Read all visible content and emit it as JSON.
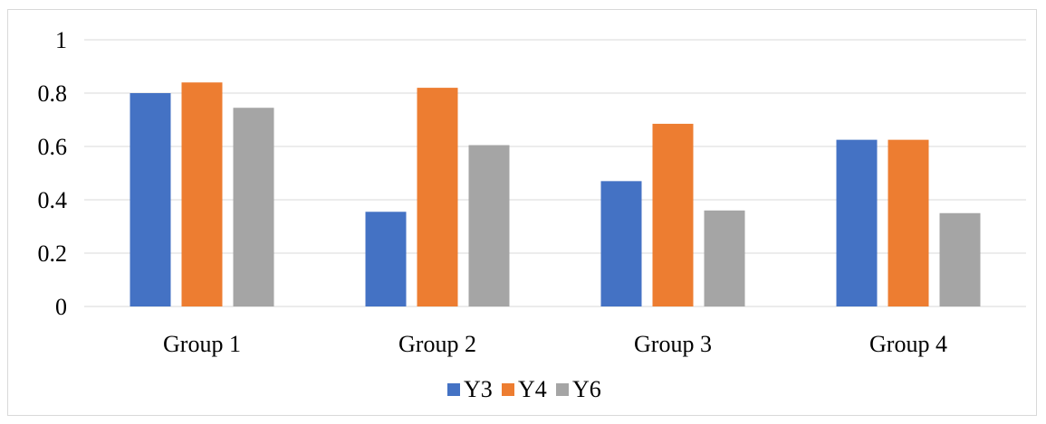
{
  "chart_data": {
    "type": "bar",
    "title": "",
    "xlabel": "",
    "ylabel": "",
    "categories": [
      "Group 1",
      "Group 2",
      "Group 3",
      "Group 4"
    ],
    "series": [
      {
        "name": "Y3",
        "color": "#4472C4",
        "values": [
          0.8,
          0.355,
          0.47,
          0.625
        ]
      },
      {
        "name": "Y4",
        "color": "#ED7D31",
        "values": [
          0.84,
          0.82,
          0.685,
          0.625
        ]
      },
      {
        "name": "Y6",
        "color": "#A5A5A5",
        "values": [
          0.745,
          0.605,
          0.36,
          0.35
        ]
      }
    ],
    "ylim": [
      0,
      1
    ],
    "yticks": [
      "0",
      "0.2",
      "0.4",
      "0.6",
      "0.8",
      "1"
    ],
    "ytick_values": [
      0,
      0.2,
      0.4,
      0.6,
      0.8,
      1
    ],
    "grid": true,
    "legend_position": "bottom"
  }
}
